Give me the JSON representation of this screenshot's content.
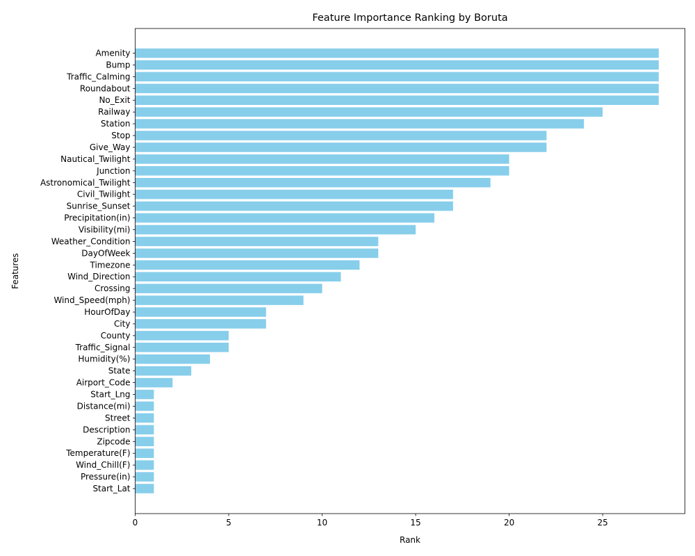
{
  "chart_data": {
    "type": "bar",
    "orientation": "horizontal",
    "title": "Feature Importance Ranking by Boruta",
    "xlabel": "Rank",
    "ylabel": "Features",
    "xlim": [
      0,
      29.4
    ],
    "xticks": [
      0,
      5,
      10,
      15,
      20,
      25
    ],
    "grid": false,
    "bar_color": "#87ceeb",
    "categories": [
      "Amenity",
      "Bump",
      "Traffic_Calming",
      "Roundabout",
      "No_Exit",
      "Railway",
      "Station",
      "Stop",
      "Give_Way",
      "Nautical_Twilight",
      "Junction",
      "Astronomical_Twilight",
      "Civil_Twilight",
      "Sunrise_Sunset",
      "Precipitation(in)",
      "Visibility(mi)",
      "Weather_Condition",
      "DayOfWeek",
      "Timezone",
      "Wind_Direction",
      "Crossing",
      "Wind_Speed(mph)",
      "HourOfDay",
      "City",
      "County",
      "Traffic_Signal",
      "Humidity(%)",
      "State",
      "Airport_Code",
      "Start_Lng",
      "Distance(mi)",
      "Street",
      "Description",
      "Zipcode",
      "Temperature(F)",
      "Wind_Chill(F)",
      "Pressure(in)",
      "Start_Lat"
    ],
    "values": [
      28,
      28,
      28,
      28,
      28,
      25,
      24,
      22,
      22,
      20,
      20,
      19,
      17,
      17,
      16,
      15,
      13,
      13,
      12,
      11,
      10,
      9,
      7,
      7,
      5,
      5,
      4,
      3,
      2,
      1,
      1,
      1,
      1,
      1,
      1,
      1,
      1,
      1
    ]
  }
}
